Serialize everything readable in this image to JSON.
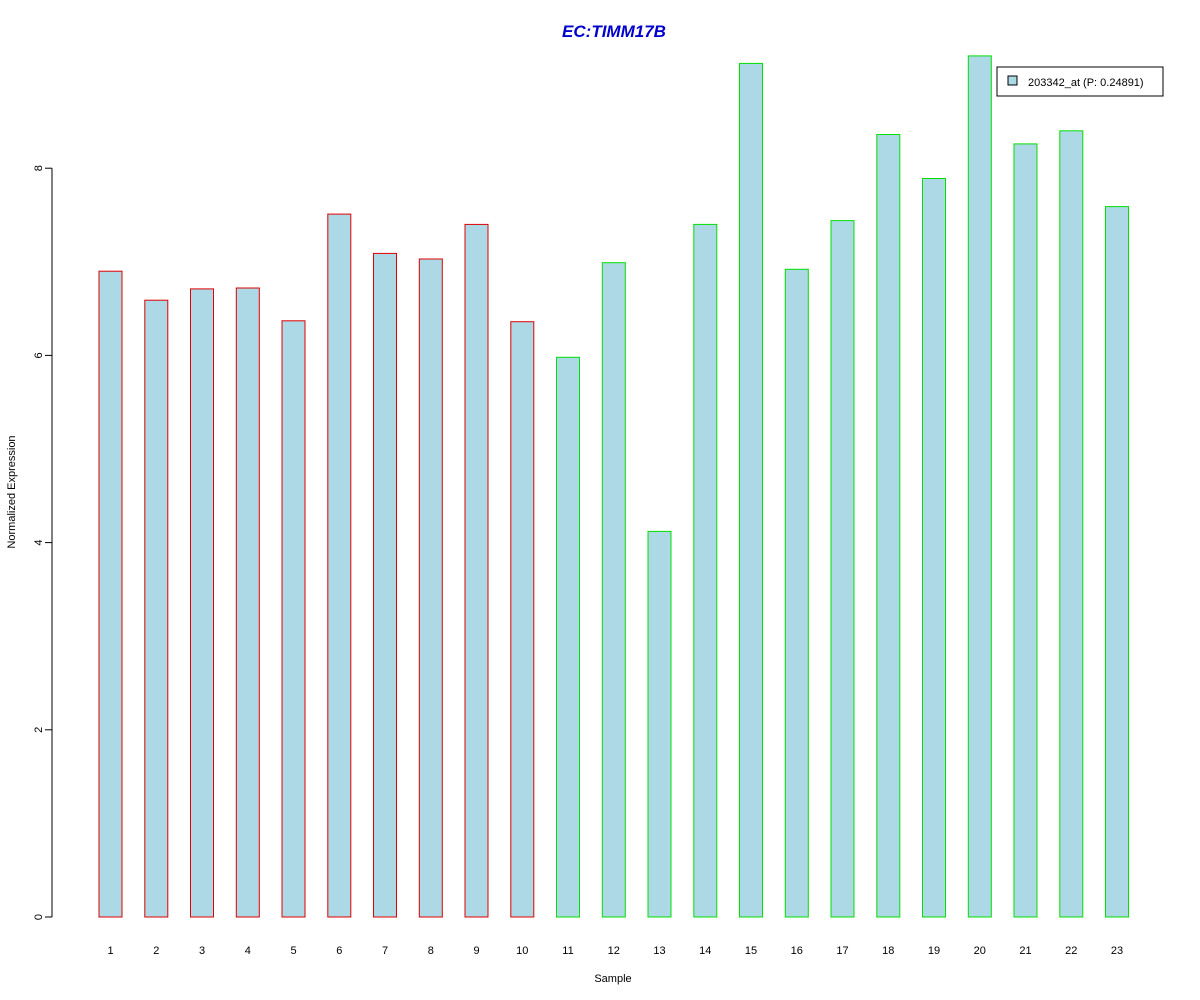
{
  "chart_data": {
    "type": "bar",
    "title": "EC:TIMM17B",
    "xlabel": "Sample",
    "ylabel": "Normalized Expression",
    "categories": [
      "1",
      "2",
      "3",
      "4",
      "5",
      "6",
      "7",
      "8",
      "9",
      "10",
      "11",
      "12",
      "13",
      "14",
      "15",
      "16",
      "17",
      "18",
      "19",
      "20",
      "21",
      "22",
      "23"
    ],
    "values": [
      6.9,
      6.59,
      6.71,
      6.72,
      6.37,
      7.51,
      7.09,
      7.03,
      7.4,
      6.36,
      5.98,
      6.99,
      4.12,
      7.4,
      9.12,
      6.92,
      7.44,
      8.36,
      7.89,
      9.2,
      8.26,
      8.4,
      7.59
    ],
    "groups": [
      "group1",
      "group1",
      "group1",
      "group1",
      "group1",
      "group1",
      "group1",
      "group1",
      "group1",
      "group1",
      "group2",
      "group2",
      "group2",
      "group2",
      "group2",
      "group2",
      "group2",
      "group2",
      "group2",
      "group2",
      "group2",
      "group2",
      "group2"
    ],
    "ylim": [
      0,
      9.2
    ],
    "yticks": [
      0,
      2,
      4,
      6,
      8
    ],
    "grid": false,
    "legend": {
      "position": "top-right",
      "entries": [
        {
          "label": "203342_at (P: 0.24891)"
        }
      ]
    },
    "colors": {
      "bar_fill": "#add8e6",
      "group1_border": "#e00000",
      "group2_border": "#00e000",
      "title": "#0000cc"
    }
  }
}
